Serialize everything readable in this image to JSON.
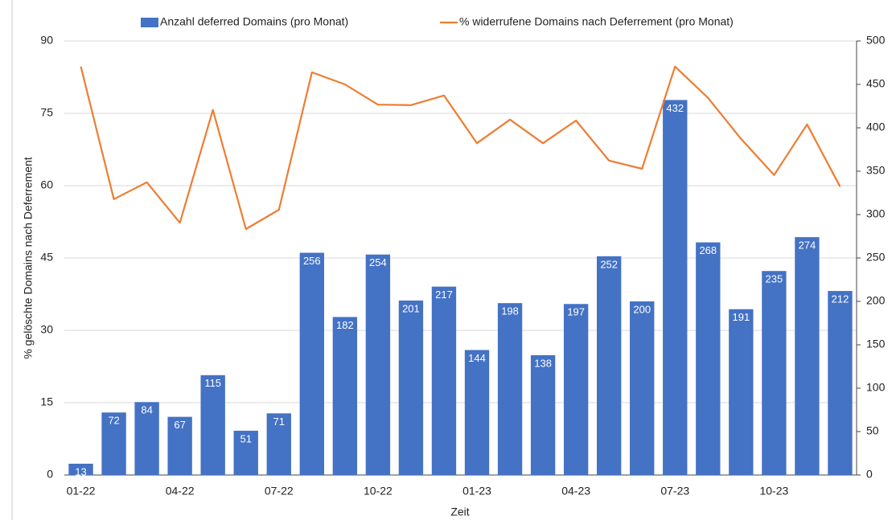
{
  "chart_data": {
    "type": "bar",
    "x_label": "Zeit",
    "y_label": "% gelöschte Domains nach Deferrement",
    "categories": [
      "01-22",
      null,
      null,
      "04-22",
      null,
      null,
      "07-22",
      null,
      null,
      "10-22",
      null,
      null,
      "01-23",
      null,
      null,
      "04-23",
      null,
      null,
      "07-23",
      null,
      null,
      "10-23",
      null,
      null
    ],
    "series": [
      {
        "name": "Anzahl deferred Domains (pro Monat)",
        "type": "bar",
        "axis": "y2",
        "color": "#4472c4",
        "values": [
          13,
          72,
          84,
          67,
          115,
          51,
          71,
          256,
          182,
          254,
          201,
          217,
          144,
          198,
          138,
          197,
          252,
          200,
          432,
          268,
          191,
          235,
          274,
          212
        ]
      },
      {
        "name": "% widerrufene Domains nach Deferrement (pro Monat)",
        "type": "line",
        "color": "#ed7d31",
        "values": [
          84.7,
          57.2,
          60.7,
          52.3,
          75.7,
          51,
          55,
          83.5,
          81,
          76.8,
          76.7,
          78.7,
          68.8,
          73.7,
          68.8,
          73.5,
          65.2,
          63.5,
          84.7,
          78.2,
          69.7,
          62.2,
          72.7,
          59.8
        ]
      }
    ],
    "ylim": [
      0,
      90
    ],
    "yticks": [
      0,
      15,
      30,
      45,
      60,
      75,
      90
    ],
    "y2lim": [
      0,
      500
    ],
    "y2ticks": [
      0,
      50,
      100,
      150,
      200,
      250,
      300,
      350,
      400,
      450,
      500
    ],
    "grid": true
  }
}
